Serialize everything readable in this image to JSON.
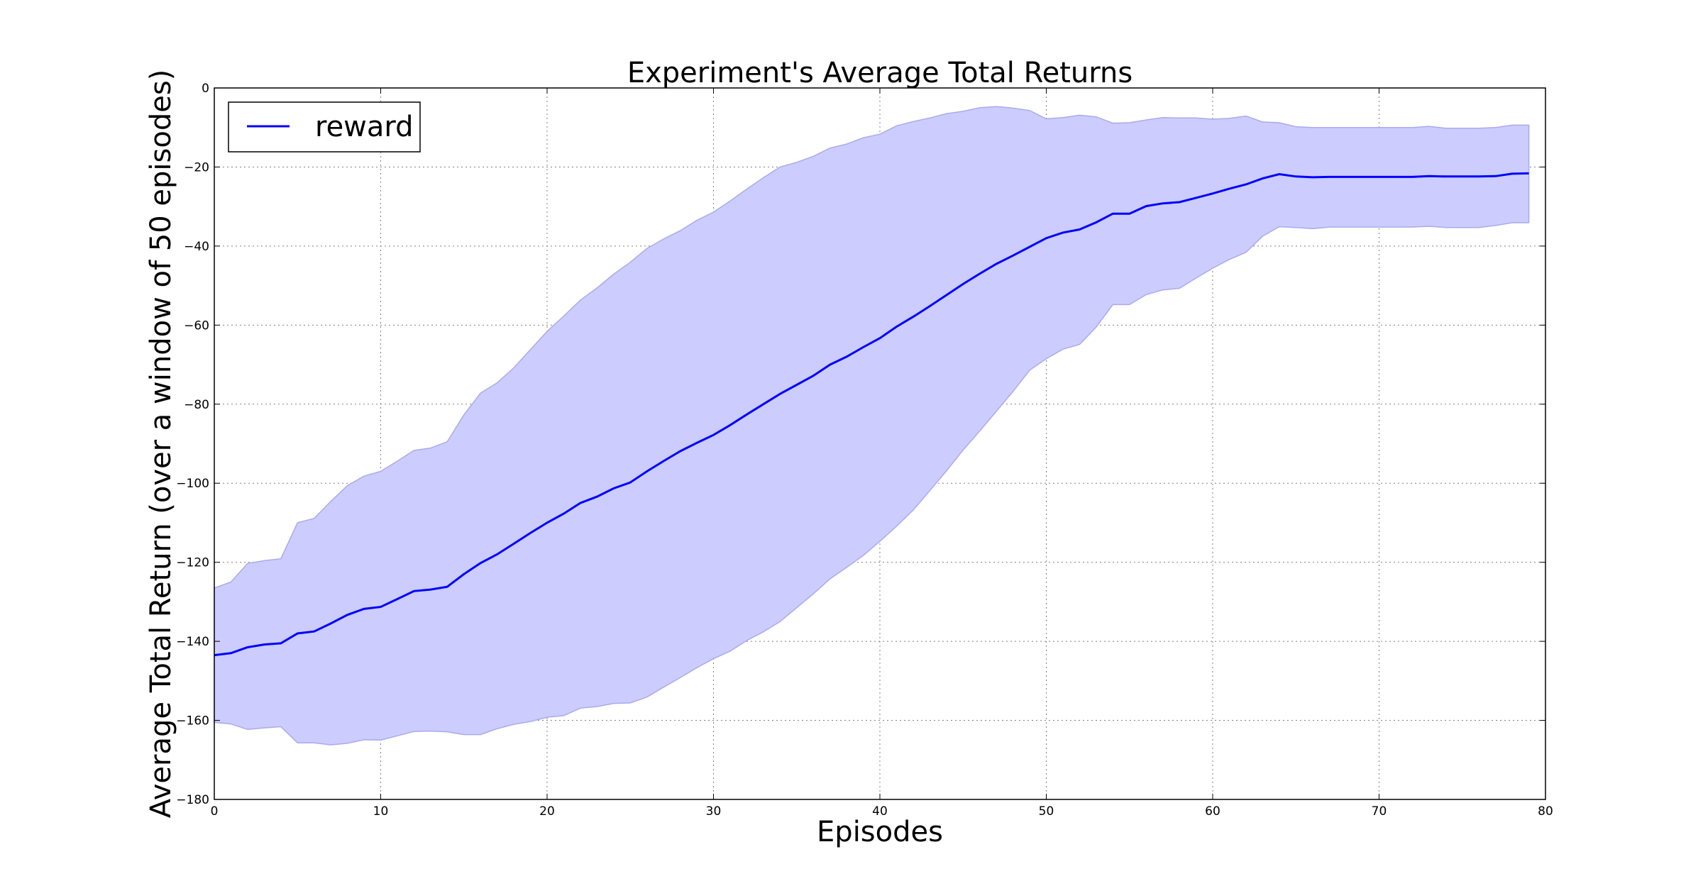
{
  "chart_data": {
    "type": "area",
    "title": "Experiment's Average Total Returns",
    "xlabel": "Episodes",
    "ylabel": "Average Total Return (over a window of 50 episodes)",
    "xlim": [
      0,
      80
    ],
    "ylim": [
      -180,
      0
    ],
    "xticks": [
      0,
      10,
      20,
      30,
      40,
      50,
      60,
      70,
      80
    ],
    "yticks": [
      0,
      -20,
      -40,
      -60,
      -80,
      -100,
      -120,
      -140,
      -160,
      -180
    ],
    "xtick_labels": [
      "0",
      "10",
      "20",
      "30",
      "40",
      "50",
      "60",
      "70",
      "80"
    ],
    "ytick_labels": [
      "0",
      "−20",
      "−40",
      "−60",
      "−80",
      "−100",
      "−120",
      "−140",
      "−160",
      "−180"
    ],
    "grid": true,
    "legend": {
      "placement": "top-left",
      "entries": [
        "reward"
      ]
    },
    "x": [
      0,
      1,
      2,
      3,
      4,
      5,
      6,
      7,
      8,
      9,
      10,
      11,
      12,
      13,
      14,
      15,
      16,
      17,
      18,
      19,
      20,
      21,
      22,
      23,
      24,
      25,
      26,
      27,
      28,
      29,
      30,
      31,
      32,
      33,
      34,
      35,
      36,
      37,
      38,
      39,
      40,
      41,
      42,
      43,
      44,
      45,
      46,
      47,
      48,
      49,
      50,
      51,
      52,
      53,
      54,
      55,
      56,
      57,
      58,
      59,
      60,
      61,
      62,
      63,
      64,
      65,
      66,
      67,
      68,
      69,
      70,
      71,
      72,
      73,
      74,
      75,
      76,
      77,
      78,
      79
    ],
    "series": [
      {
        "name": "reward",
        "color": "#0000ff",
        "values": [
          -143.5,
          -143,
          -141.5,
          -140.8,
          -140.5,
          -138,
          -137.5,
          -135.5,
          -133.3,
          -131.8,
          -131.3,
          -129.3,
          -127.3,
          -126.9,
          -126.2,
          -123,
          -120.2,
          -118,
          -115.3,
          -112.6,
          -110,
          -107.7,
          -105,
          -103.4,
          -101.3,
          -99.8,
          -97,
          -94.4,
          -91.9,
          -89.8,
          -87.8,
          -85.3,
          -82.6,
          -80,
          -77.4,
          -75.1,
          -72.8,
          -70,
          -68,
          -65.6,
          -63.3,
          -60.4,
          -57.9,
          -55.2,
          -52.4,
          -49.6,
          -47,
          -44.5,
          -42.4,
          -40.2,
          -38,
          -36.6,
          -35.8,
          -34,
          -31.8,
          -31.8,
          -29.9,
          -29.2,
          -28.9,
          -27.8,
          -26.7,
          -25.5,
          -24.4,
          -22.9,
          -21.8,
          -22.4,
          -22.6,
          -22.5,
          -22.5,
          -22.5,
          -22.5,
          -22.5,
          -22.5,
          -22.3,
          -22.4,
          -22.4,
          -22.4,
          -22.3,
          -21.7,
          -21.6
        ],
        "upper": [
          -126.5,
          -125,
          -120.3,
          -119.6,
          -119.1,
          -110,
          -108.9,
          -104.6,
          -100.6,
          -98.2,
          -97,
          -94.4,
          -91.7,
          -91.1,
          -89.5,
          -82.7,
          -77.2,
          -74.6,
          -70.8,
          -66.2,
          -61.6,
          -57.7,
          -53.7,
          -50.6,
          -47.1,
          -44.1,
          -40.6,
          -38.2,
          -36.1,
          -33.5,
          -31.4,
          -28.6,
          -25.6,
          -22.7,
          -20,
          -18.8,
          -17.3,
          -15.2,
          -14.2,
          -12.6,
          -11.7,
          -9.6,
          -8.5,
          -7.6,
          -6.5,
          -5.9,
          -5,
          -4.7,
          -5.1,
          -5.7,
          -7.8,
          -7.5,
          -6.9,
          -7.3,
          -8.9,
          -8.8,
          -8.1,
          -7.5,
          -7.6,
          -7.6,
          -7.9,
          -7.7,
          -7.1,
          -8.6,
          -8.8,
          -9.8,
          -10,
          -10,
          -10,
          -10,
          -10,
          -10,
          -10,
          -9.7,
          -10.2,
          -10.2,
          -10.2,
          -10,
          -9.4,
          -9.4
        ],
        "lower": [
          -160.5,
          -160.9,
          -162.3,
          -161.9,
          -161.6,
          -165.7,
          -165.7,
          -166.2,
          -165.8,
          -164.9,
          -165,
          -163.9,
          -162.8,
          -162.7,
          -162.9,
          -163.6,
          -163.6,
          -162.1,
          -161,
          -160.3,
          -159.2,
          -158.8,
          -156.9,
          -156.5,
          -155.7,
          -155.6,
          -154.1,
          -151.6,
          -149.2,
          -146.7,
          -144.4,
          -142.5,
          -139.8,
          -137.6,
          -135,
          -131.5,
          -128,
          -124.2,
          -121.3,
          -118.3,
          -114.7,
          -110.9,
          -106.8,
          -101.9,
          -96.9,
          -91.6,
          -86.8,
          -81.8,
          -76.8,
          -71.4,
          -68.5,
          -66.1,
          -64.9,
          -60.5,
          -54.8,
          -54.8,
          -52.3,
          -51.1,
          -50.7,
          -48.1,
          -45.6,
          -43.4,
          -41.6,
          -37.5,
          -35.1,
          -35.3,
          -35.6,
          -35.2,
          -35.2,
          -35.2,
          -35.2,
          -35.2,
          -35.2,
          -35,
          -35.3,
          -35.3,
          -35.3,
          -34.8,
          -34.1,
          -34.1
        ]
      }
    ],
    "band_fill": "#ccccff",
    "band_edge": "#aaaaee"
  }
}
